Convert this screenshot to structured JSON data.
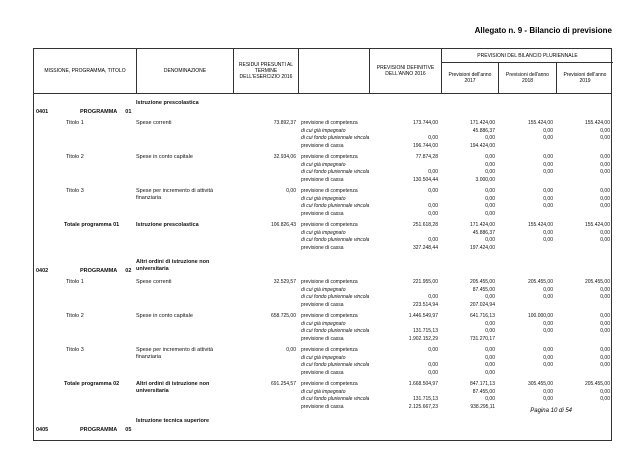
{
  "page": {
    "header_title": "Allegato n. 9 - Bilancio di previsione",
    "footer": "Pagina 10 di 54"
  },
  "table": {
    "columns": {
      "missione": "MISSIONE, PROGRAMMA, TITOLO",
      "denominazione": "DENOMINAZIONE",
      "residui": "RESIDUI PRESUNTI AL TERMINE DELL'ESERCIZIO 2016",
      "blank": "",
      "def2016": "PREVISIONI DEFINITIVE DELL'ANNO 2016",
      "pluriennale": "PREVISIONI DEL BILANCIO PLURIENNALE",
      "anno2017": "Previsioni dell'anno 2017",
      "anno2018": "Previsioni dell'anno 2018",
      "anno2019": "Previsioni dell'anno 2019"
    },
    "row_labels": [
      "previsione di competenza",
      "di cui già impegnato",
      "di cui fondo pluriennale vincolato",
      "previsione di cassa"
    ],
    "programs": [
      {
        "code": "0401",
        "kind": "PROGRAMMA",
        "num": "01",
        "name": "Istruzione prescolastica",
        "titles": [
          {
            "label": "Titolo 1",
            "denom": "Spese correnti",
            "residui": "73.892,37",
            "rows": [
              [
                "173.744,00",
                "171.424,00",
                "155.424,00",
                "155.424,00"
              ],
              [
                "",
                "45.886,37",
                "0,00",
                "0,00"
              ],
              [
                "0,00",
                "0,00",
                "0,00",
                "0,00"
              ],
              [
                "196.744,00",
                "194.424,00",
                "",
                ""
              ]
            ]
          },
          {
            "label": "Titolo 2",
            "denom": "Spese in conto capitale",
            "residui": "32.934,06",
            "rows": [
              [
                "77.874,28",
                "0,00",
                "0,00",
                "0,00"
              ],
              [
                "",
                "0,00",
                "0,00",
                "0,00"
              ],
              [
                "0,00",
                "0,00",
                "0,00",
                "0,00"
              ],
              [
                "130.504,44",
                "3.000,00",
                "",
                ""
              ]
            ]
          },
          {
            "label": "Titolo 3",
            "denom": "Spese per incremento di attività finanziaria",
            "residui": "0,00",
            "rows": [
              [
                "0,00",
                "0,00",
                "0,00",
                "0,00"
              ],
              [
                "",
                "0,00",
                "0,00",
                "0,00"
              ],
              [
                "0,00",
                "0,00",
                "0,00",
                "0,00"
              ],
              [
                "0,00",
                "0,00",
                "",
                ""
              ]
            ]
          }
        ],
        "total": {
          "label": "Totale programma",
          "num": "01",
          "name": "Istruzione prescolastica",
          "residui": "106.826,43",
          "rows": [
            [
              "251.618,28",
              "171.424,00",
              "155.424,00",
              "155.424,00"
            ],
            [
              "",
              "45.886,37",
              "0,00",
              "0,00"
            ],
            [
              "0,00",
              "0,00",
              "0,00",
              "0,00"
            ],
            [
              "327.248,44",
              "197.424,00",
              "",
              ""
            ]
          ]
        }
      },
      {
        "code": "0402",
        "kind": "PROGRAMMA",
        "num": "02",
        "name": "Altri ordini di istruzione non universitaria",
        "titles": [
          {
            "label": "Titolo 1",
            "denom": "Spese correnti",
            "residui": "32.529,57",
            "rows": [
              [
                "221.955,00",
                "205.455,00",
                "205.455,00",
                "205.455,00"
              ],
              [
                "",
                "87.455,00",
                "0,00",
                "0,00"
              ],
              [
                "0,00",
                "0,00",
                "0,00",
                "0,00"
              ],
              [
                "223.514,94",
                "207.024,94",
                "",
                ""
              ]
            ]
          },
          {
            "label": "Titolo 2",
            "denom": "Spese in conto capitale",
            "residui": "658.725,00",
            "rows": [
              [
                "1.446.549,97",
                "641.716,13",
                "100.000,00",
                "0,00"
              ],
              [
                "",
                "0,00",
                "0,00",
                "0,00"
              ],
              [
                "131.715,13",
                "0,00",
                "0,00",
                "0,00"
              ],
              [
                "1.902.152,29",
                "731.270,17",
                "",
                ""
              ]
            ]
          },
          {
            "label": "Titolo 3",
            "denom": "Spese per incremento di attività finanziaria",
            "residui": "0,00",
            "rows": [
              [
                "0,00",
                "0,00",
                "0,00",
                "0,00"
              ],
              [
                "",
                "0,00",
                "0,00",
                "0,00"
              ],
              [
                "0,00",
                "0,00",
                "0,00",
                "0,00"
              ],
              [
                "0,00",
                "0,00",
                "",
                ""
              ]
            ]
          }
        ],
        "total": {
          "label": "Totale programma",
          "num": "02",
          "name": "Altri ordini di istruzione non universitaria",
          "residui": "691.254,57",
          "rows": [
            [
              "1.668.504,97",
              "847.171,13",
              "305.455,00",
              "205.455,00"
            ],
            [
              "",
              "87.455,00",
              "0,00",
              "0,00"
            ],
            [
              "131.715,13",
              "0,00",
              "0,00",
              "0,00"
            ],
            [
              "2.125.667,23",
              "938.295,11",
              "",
              ""
            ]
          ]
        }
      },
      {
        "code": "0405",
        "kind": "PROGRAMMA",
        "num": "05",
        "name": "Istruzione tecnica superiore",
        "titles": [],
        "total": null
      }
    ]
  }
}
